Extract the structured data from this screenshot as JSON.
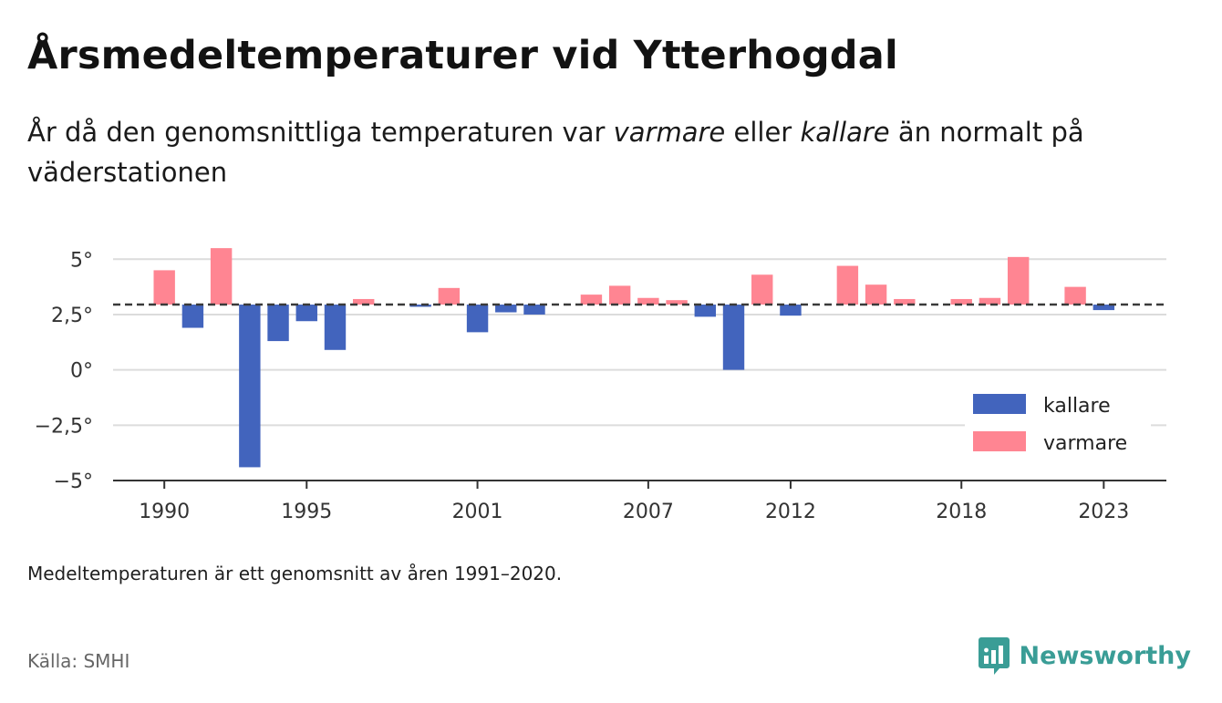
{
  "title": "Årsmedeltemperaturer vid Ytterhogdal",
  "subtitle": {
    "part1": "År då den genomsnittliga temperaturen var ",
    "em1": "varmare",
    "part2": " eller ",
    "em2": "kallare",
    "part3": " än normalt på väderstationen"
  },
  "note": "Medeltemperaturen är ett genomsnitt av åren 1991–2020.",
  "source": "Källa: SMHI",
  "brand": "Newsworthy",
  "colors": {
    "kallare": "#4264bd",
    "varmare": "#ff8592",
    "brand": "#3a9d96"
  },
  "chart_data": {
    "type": "bar",
    "baseline": 2.95,
    "ylim": [
      -5,
      6
    ],
    "yticks": [
      {
        "value": 5,
        "label": "5°"
      },
      {
        "value": 2.5,
        "label": "2,5°"
      },
      {
        "value": 0,
        "label": "0°"
      },
      {
        "value": -2.5,
        "label": "−2,5°"
      },
      {
        "value": -5,
        "label": "−5°"
      }
    ],
    "xlim": [
      1988.2,
      2025.2
    ],
    "xticks": [
      {
        "value": 1990,
        "label": "1990"
      },
      {
        "value": 1995,
        "label": "1995"
      },
      {
        "value": 2001,
        "label": "2001"
      },
      {
        "value": 2007,
        "label": "2007"
      },
      {
        "value": 2012,
        "label": "2012"
      },
      {
        "value": 2018,
        "label": "2018"
      },
      {
        "value": 2023,
        "label": "2023"
      }
    ],
    "legend": [
      {
        "key": "kallare",
        "label": "kallare"
      },
      {
        "key": "varmare",
        "label": "varmare"
      }
    ],
    "legend_position": "bottom-right",
    "grid": true,
    "values": [
      {
        "year": 1990,
        "value": 4.5
      },
      {
        "year": 1991,
        "value": 1.9
      },
      {
        "year": 1992,
        "value": 5.5
      },
      {
        "year": 1993,
        "value": -4.4
      },
      {
        "year": 1994,
        "value": 1.3
      },
      {
        "year": 1995,
        "value": 2.2
      },
      {
        "year": 1996,
        "value": 0.9
      },
      {
        "year": 1997,
        "value": 3.2
      },
      {
        "year": 1999,
        "value": 2.85
      },
      {
        "year": 2000,
        "value": 3.7
      },
      {
        "year": 2001,
        "value": 1.7
      },
      {
        "year": 2002,
        "value": 2.6
      },
      {
        "year": 2003,
        "value": 2.5
      },
      {
        "year": 2005,
        "value": 3.4
      },
      {
        "year": 2006,
        "value": 3.8
      },
      {
        "year": 2007,
        "value": 3.25
      },
      {
        "year": 2008,
        "value": 3.15
      },
      {
        "year": 2009,
        "value": 2.4
      },
      {
        "year": 2010,
        "value": 0.0
      },
      {
        "year": 2011,
        "value": 4.3
      },
      {
        "year": 2012,
        "value": 2.45
      },
      {
        "year": 2014,
        "value": 4.7
      },
      {
        "year": 2015,
        "value": 3.85
      },
      {
        "year": 2016,
        "value": 3.2
      },
      {
        "year": 2018,
        "value": 3.2
      },
      {
        "year": 2019,
        "value": 3.25
      },
      {
        "year": 2020,
        "value": 5.1
      },
      {
        "year": 2022,
        "value": 3.75
      },
      {
        "year": 2023,
        "value": 2.7
      }
    ]
  }
}
